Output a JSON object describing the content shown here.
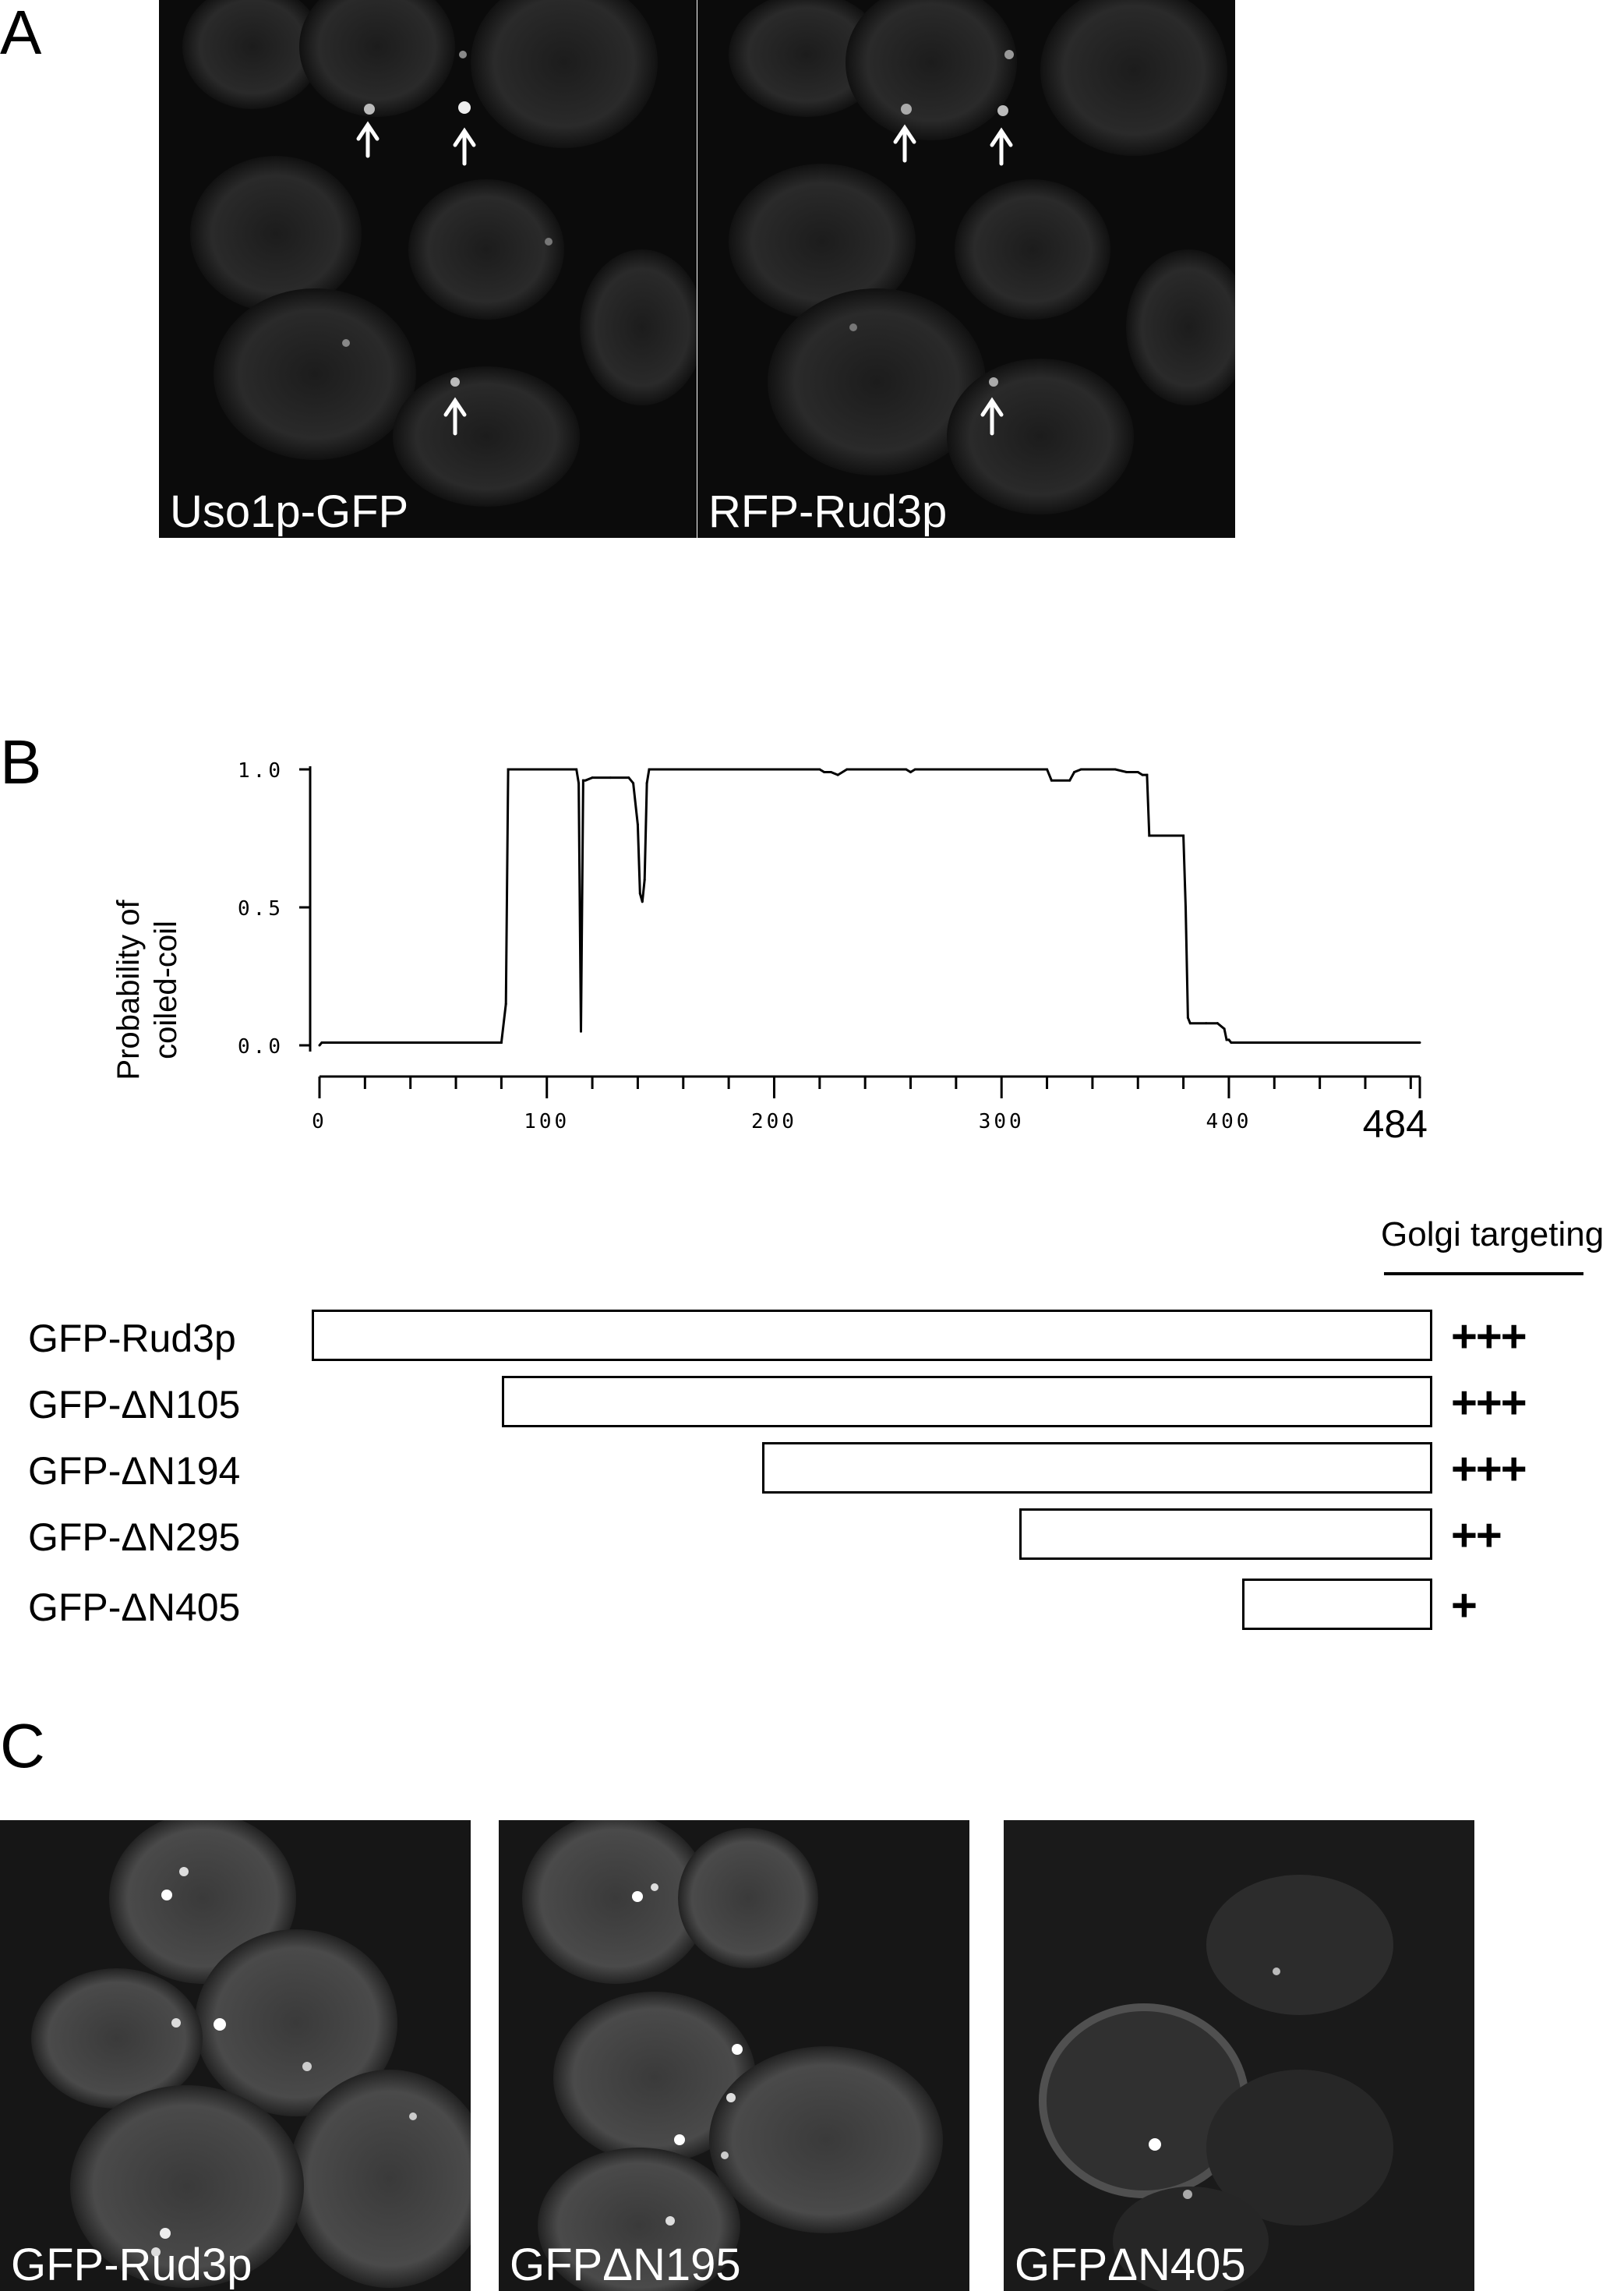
{
  "panels": {
    "A": "A",
    "B": "B",
    "C": "C"
  },
  "panel_a": {
    "images": [
      {
        "caption": "Uso1p-GFP"
      },
      {
        "caption": "RFP-Rud3p"
      }
    ]
  },
  "chart_data": {
    "type": "line",
    "ylabel_line1": "Probability of",
    "ylabel_line2": "coiled-coil",
    "xlim": [
      0,
      484
    ],
    "ylim": [
      0,
      1
    ],
    "x_ticks": [
      "0",
      "100",
      "200",
      "300",
      "400"
    ],
    "x_end_label": "484",
    "y_ticks": [
      "0.0",
      "0.5",
      "1.0"
    ],
    "x": [
      0,
      1,
      80,
      82,
      83,
      100,
      113,
      114,
      115,
      116,
      117,
      120,
      128,
      136,
      138,
      140,
      141,
      142,
      143,
      144,
      145,
      148,
      160,
      200,
      220,
      222,
      225,
      228,
      232,
      250,
      258,
      260,
      262,
      280,
      300,
      320,
      322,
      330,
      332,
      335,
      340,
      350,
      355,
      360,
      362,
      364,
      365,
      370,
      380,
      381,
      382,
      383,
      390,
      395,
      398,
      399,
      400,
      401,
      405,
      420,
      450,
      484
    ],
    "y": [
      0.0,
      0.01,
      0.01,
      0.15,
      1.0,
      1.0,
      1.0,
      0.95,
      0.05,
      0.96,
      0.96,
      0.97,
      0.97,
      0.97,
      0.95,
      0.8,
      0.55,
      0.52,
      0.6,
      0.95,
      1.0,
      1.0,
      1.0,
      1.0,
      1.0,
      0.99,
      0.99,
      0.98,
      1.0,
      1.0,
      1.0,
      0.99,
      1.0,
      1.0,
      1.0,
      1.0,
      0.96,
      0.96,
      0.99,
      1.0,
      1.0,
      1.0,
      0.99,
      0.99,
      0.98,
      0.98,
      0.76,
      0.76,
      0.76,
      0.5,
      0.1,
      0.08,
      0.08,
      0.08,
      0.06,
      0.02,
      0.02,
      0.01,
      0.01,
      0.01,
      0.01,
      0.01
    ]
  },
  "constructs": {
    "column_header": "Golgi targeting",
    "rows": [
      {
        "label": "GFP-Rud3p",
        "start": 1,
        "end": 484,
        "targeting": "+++"
      },
      {
        "label": "GFP-ΔN105",
        "start": 83,
        "end": 484,
        "targeting": "+++"
      },
      {
        "label": "GFP-ΔN194",
        "start": 195,
        "end": 484,
        "targeting": "+++"
      },
      {
        "label": "GFP-ΔN295",
        "start": 306,
        "end": 484,
        "targeting": "++"
      },
      {
        "label": "GFP-ΔN405",
        "start": 402,
        "end": 484,
        "targeting": "+"
      }
    ]
  },
  "panel_c": {
    "images": [
      {
        "caption": "GFP-Rud3p"
      },
      {
        "caption": "GFPΔN195"
      },
      {
        "caption": "GFPΔN405"
      }
    ]
  }
}
